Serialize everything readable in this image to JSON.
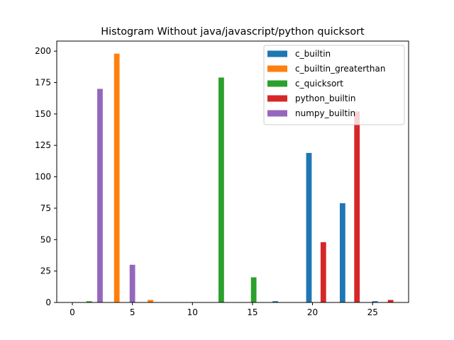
{
  "chart_data": {
    "type": "bar",
    "title": "Histogram Without java/javascript/python quicksort",
    "xlabel": "",
    "ylabel": "",
    "xlim": [
      -1.3,
      28
    ],
    "ylim": [
      0,
      208
    ],
    "xticks": [
      0,
      5,
      10,
      15,
      20,
      25
    ],
    "yticks": [
      0,
      25,
      50,
      75,
      100,
      125,
      150,
      175,
      200
    ],
    "bar_width": 0.46,
    "legend_position": "upper right",
    "grid": false,
    "series": [
      {
        "name": "c_builtin",
        "color": "#1f77b4",
        "points": [
          {
            "x": 16.9,
            "y": 1
          },
          {
            "x": 19.7,
            "y": 119
          },
          {
            "x": 22.5,
            "y": 79
          },
          {
            "x": 25.2,
            "y": 1
          }
        ]
      },
      {
        "name": "c_builtin_greaterthan",
        "color": "#ff7f0e",
        "points": [
          {
            "x": 3.7,
            "y": 198
          },
          {
            "x": 6.5,
            "y": 2
          }
        ]
      },
      {
        "name": "c_quicksort",
        "color": "#2ca02c",
        "points": [
          {
            "x": 1.4,
            "y": 1
          },
          {
            "x": 12.4,
            "y": 179
          },
          {
            "x": 15.1,
            "y": 20
          }
        ]
      },
      {
        "name": "python_builtin",
        "color": "#d62728",
        "points": [
          {
            "x": 20.9,
            "y": 48
          },
          {
            "x": 23.7,
            "y": 152
          },
          {
            "x": 26.5,
            "y": 2
          }
        ]
      },
      {
        "name": "numpy_builtin",
        "color": "#9467bd",
        "points": [
          {
            "x": 2.3,
            "y": 170
          },
          {
            "x": 5.0,
            "y": 30
          }
        ]
      }
    ]
  }
}
